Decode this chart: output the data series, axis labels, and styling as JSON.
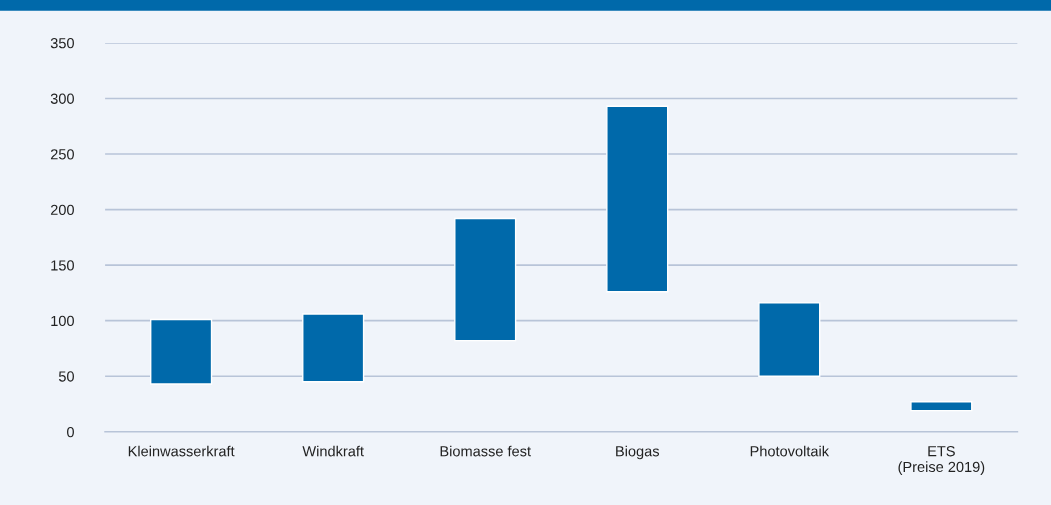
{
  "chart_data": {
    "type": "bar",
    "categories": [
      "Kleinwasserkraft",
      "Windkraft",
      "Biomasse fest",
      "Biogas",
      "Photovoltaik",
      "ETS\n(Preise 2019)"
    ],
    "base": [
      43,
      45,
      82,
      126,
      50,
      19
    ],
    "values": [
      58,
      61,
      110,
      167,
      66,
      8
    ],
    "color": "#0069aa",
    "ylim": [
      0,
      350
    ],
    "yticks": [
      0,
      50,
      100,
      150,
      200,
      250,
      300,
      350
    ],
    "grid": "y",
    "legend": false
  }
}
